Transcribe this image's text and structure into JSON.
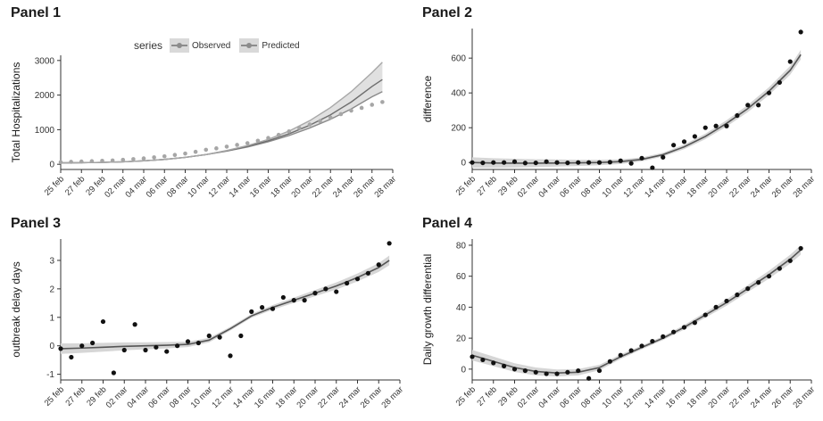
{
  "chart_data": [
    {
      "type": "line",
      "title": "Panel 1",
      "ylabel": "Total Hospitalizations",
      "xlabel": "",
      "x_tick_labels": [
        "25 feb",
        "27 feb",
        "29 feb",
        "02 mar",
        "04 mar",
        "06 mar",
        "08 mar",
        "10 mar",
        "12 mar",
        "14 mar",
        "16 mar",
        "18 mar",
        "20 mar",
        "22 mar",
        "24 mar",
        "26 mar",
        "28 mar"
      ],
      "x_index_range": [
        0,
        32
      ],
      "ylim": [
        -150,
        3150
      ],
      "y_ticks": [
        0,
        1000,
        2000,
        3000
      ],
      "grid": false,
      "legend": {
        "title": "series",
        "entries": [
          "Observed",
          "Predicted"
        ],
        "position": "top"
      },
      "series": [
        {
          "name": "Observed",
          "style": "points",
          "x": [
            0,
            1,
            2,
            3,
            4,
            5,
            6,
            7,
            8,
            9,
            10,
            11,
            12,
            13,
            14,
            15,
            16,
            17,
            18,
            19,
            20,
            21,
            22,
            23,
            24,
            25,
            26,
            27,
            28,
            29,
            30,
            31
          ],
          "y": [
            60,
            70,
            80,
            90,
            100,
            110,
            130,
            150,
            170,
            200,
            230,
            270,
            310,
            360,
            420,
            460,
            510,
            560,
            610,
            680,
            760,
            850,
            950,
            1050,
            1150,
            1250,
            1350,
            1450,
            1550,
            1630,
            1720,
            1800
          ]
        },
        {
          "name": "Predicted",
          "style": "lines",
          "x": [
            0,
            2,
            4,
            6,
            8,
            10,
            12,
            14,
            16,
            18,
            20,
            22,
            24,
            26,
            28,
            30,
            31
          ],
          "y_lines": [
            [
              40,
              45,
              55,
              70,
              100,
              140,
              200,
              280,
              380,
              500,
              650,
              830,
              1050,
              1300,
              1600,
              1950,
              2100
            ],
            [
              40,
              45,
              55,
              70,
              100,
              140,
              200,
              280,
              390,
              520,
              680,
              880,
              1130,
              1430,
              1800,
              2250,
              2450
            ],
            [
              40,
              45,
              55,
              70,
              100,
              140,
              200,
              280,
              400,
              540,
              720,
              960,
              1260,
              1640,
              2100,
              2650,
              2950
            ]
          ]
        }
      ]
    },
    {
      "type": "scatter",
      "title": "Panel 2",
      "ylabel": "difference",
      "xlabel": "",
      "x_tick_labels": [
        "25 feb",
        "27 feb",
        "29 feb",
        "02 mar",
        "04 mar",
        "06 mar",
        "08 mar",
        "10 mar",
        "12 mar",
        "14 mar",
        "16 mar",
        "18 mar",
        "20 mar",
        "22 mar",
        "24 mar",
        "26 mar",
        "28 mar"
      ],
      "x_index_range": [
        0,
        32
      ],
      "ylim": [
        -40,
        770
      ],
      "y_ticks": [
        0,
        200,
        400,
        600
      ],
      "grid": false,
      "points": {
        "x": [
          0,
          1,
          2,
          3,
          4,
          5,
          6,
          7,
          8,
          9,
          10,
          11,
          12,
          13,
          14,
          15,
          16,
          17,
          18,
          19,
          20,
          21,
          22,
          23,
          24,
          25,
          26,
          27,
          28,
          29,
          30,
          31
        ],
        "y": [
          0,
          -2,
          0,
          0,
          5,
          -3,
          -2,
          5,
          0,
          -2,
          0,
          0,
          0,
          2,
          10,
          -5,
          25,
          -30,
          30,
          100,
          120,
          150,
          200,
          210,
          210,
          270,
          330,
          330,
          400,
          460,
          580,
          750
        ]
      },
      "smooth": {
        "x": [
          0,
          2,
          4,
          6,
          8,
          10,
          12,
          14,
          16,
          18,
          20,
          22,
          24,
          26,
          28,
          30,
          31
        ],
        "y": [
          0,
          -3,
          -4,
          -4,
          -3,
          -2,
          0,
          5,
          18,
          45,
          90,
          150,
          225,
          310,
          410,
          530,
          620
        ]
      }
    },
    {
      "type": "scatter",
      "title": "Panel 3",
      "ylabel": "outbreak delay days",
      "xlabel": "",
      "x_tick_labels": [
        "25 feb",
        "27 feb",
        "29 feb",
        "02 mar",
        "04 mar",
        "06 mar",
        "08 mar",
        "10 mar",
        "12 mar",
        "14 mar",
        "16 mar",
        "18 mar",
        "20 mar",
        "22 mar",
        "24 mar",
        "26 mar",
        "28 mar"
      ],
      "x_index_range": [
        0,
        32
      ],
      "ylim": [
        -1.2,
        3.75
      ],
      "y_ticks": [
        -1,
        0,
        1,
        2,
        3
      ],
      "grid": false,
      "points": {
        "x": [
          0,
          1,
          2,
          3,
          4,
          5,
          6,
          7,
          8,
          9,
          10,
          11,
          12,
          13,
          14,
          15,
          16,
          17,
          18,
          19,
          20,
          21,
          22,
          23,
          24,
          25,
          26,
          27,
          28,
          29,
          30,
          31
        ],
        "y": [
          -0.1,
          -0.4,
          0,
          0.1,
          0.85,
          -0.95,
          -0.15,
          0.75,
          -0.15,
          -0.05,
          -0.2,
          0,
          0.15,
          0.1,
          0.35,
          0.3,
          -0.35,
          0.35,
          1.2,
          1.35,
          1.3,
          1.7,
          1.6,
          1.6,
          1.85,
          2.0,
          1.9,
          2.2,
          2.35,
          2.55,
          2.85,
          3.6
        ]
      },
      "smooth": {
        "x": [
          0,
          2,
          4,
          6,
          8,
          10,
          12,
          14,
          16,
          18,
          20,
          22,
          24,
          26,
          28,
          30,
          31
        ],
        "y": [
          -0.1,
          -0.08,
          -0.05,
          -0.02,
          0,
          0.02,
          0.05,
          0.2,
          0.6,
          1.05,
          1.35,
          1.6,
          1.85,
          2.1,
          2.4,
          2.75,
          3.0
        ]
      }
    },
    {
      "type": "scatter",
      "title": "Panel 4",
      "ylabel": "Daily growth differential",
      "xlabel": "",
      "x_tick_labels": [
        "25 feb",
        "27 feb",
        "29 feb",
        "02 mar",
        "04 mar",
        "06 mar",
        "08 mar",
        "10 mar",
        "12 mar",
        "14 mar",
        "16 mar",
        "18 mar",
        "20 mar",
        "22 mar",
        "24 mar",
        "26 mar",
        "28 mar"
      ],
      "x_index_range": [
        0,
        32
      ],
      "ylim": [
        -7,
        84
      ],
      "y_ticks": [
        0,
        20,
        40,
        60,
        80
      ],
      "grid": false,
      "points": {
        "x": [
          0,
          1,
          2,
          3,
          4,
          5,
          6,
          7,
          8,
          9,
          10,
          11,
          12,
          13,
          14,
          15,
          16,
          17,
          18,
          19,
          20,
          21,
          22,
          23,
          24,
          25,
          26,
          27,
          28,
          29,
          30,
          31
        ],
        "y": [
          8,
          6,
          4,
          2,
          0,
          -1,
          -2,
          -3,
          -3,
          -2,
          -1,
          -6,
          -1,
          5,
          9,
          12,
          15,
          18,
          21,
          24,
          27,
          30,
          35,
          40,
          44,
          48,
          52,
          56,
          60,
          65,
          70,
          78
        ]
      },
      "smooth": {
        "x": [
          0,
          2,
          4,
          6,
          8,
          10,
          12,
          14,
          16,
          18,
          20,
          22,
          24,
          26,
          28,
          30,
          31
        ],
        "y": [
          9,
          5,
          1,
          -1.5,
          -2.5,
          -2,
          1,
          8,
          14,
          20,
          27,
          35,
          43,
          52,
          61,
          71,
          77
        ]
      }
    }
  ]
}
